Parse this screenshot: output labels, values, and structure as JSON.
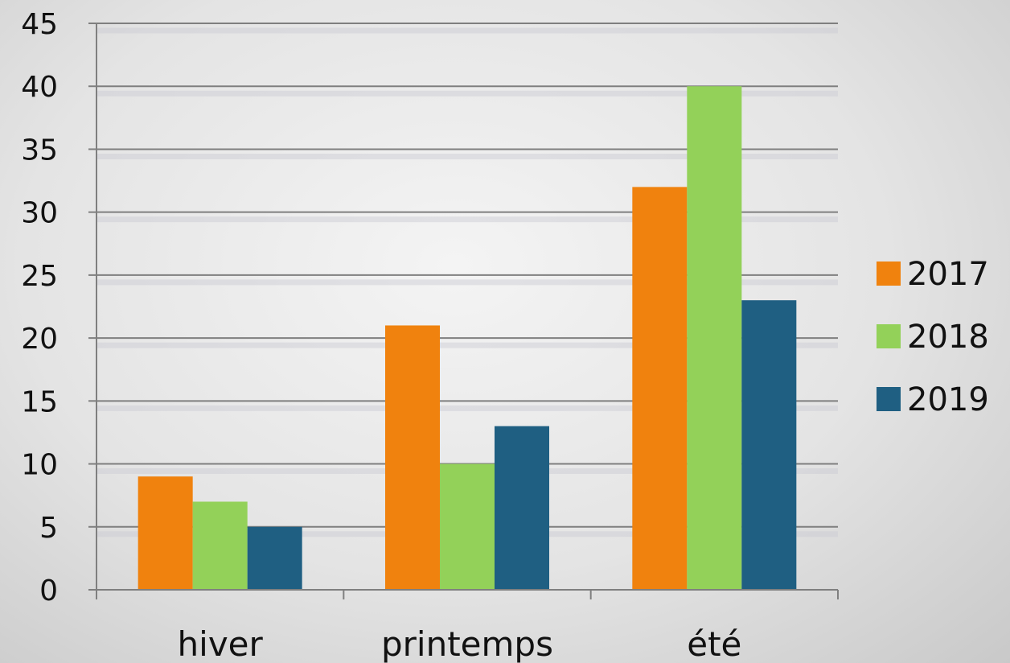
{
  "chart_data": {
    "type": "bar",
    "categories": [
      "hiver",
      "printemps",
      "été"
    ],
    "series": [
      {
        "name": "2017",
        "color": "#f0820e",
        "values": [
          9,
          21,
          32
        ]
      },
      {
        "name": "2018",
        "color": "#93d159",
        "values": [
          7,
          10,
          40
        ]
      },
      {
        "name": "2019",
        "color": "#1f5f82",
        "values": [
          5,
          13,
          23
        ]
      }
    ],
    "ylim": [
      0,
      45
    ],
    "yticks": [
      "0",
      "5",
      "10",
      "15",
      "20",
      "25",
      "30",
      "35",
      "40",
      "45"
    ],
    "grid": true,
    "legend": "right"
  }
}
